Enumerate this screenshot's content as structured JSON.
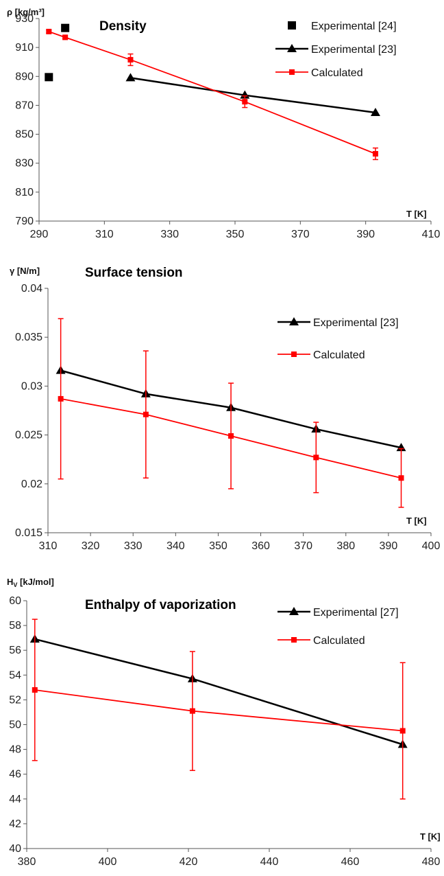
{
  "chart_data": [
    {
      "type": "line",
      "title": "Density",
      "ylabel": "ρ [kg/m³]",
      "xlabel": "T [K]",
      "xlim": [
        290,
        410
      ],
      "ylim": [
        790,
        930
      ],
      "xticks": [
        290,
        310,
        330,
        350,
        370,
        390,
        410
      ],
      "yticks": [
        790,
        810,
        830,
        850,
        870,
        890,
        910,
        930
      ],
      "grid": false,
      "legend_position": "top-right",
      "series": [
        {
          "name": "Experimental [24]",
          "marker": "square",
          "line": false,
          "color": "#000000",
          "points": [
            {
              "x": 293,
              "y": 889.5
            },
            {
              "x": 298,
              "y": 923.5
            }
          ]
        },
        {
          "name": "Experimental [23]",
          "marker": "triangle",
          "line": true,
          "color": "#000000",
          "points": [
            {
              "x": 318,
              "y": 889
            },
            {
              "x": 353,
              "y": 877
            },
            {
              "x": 393,
              "y": 865
            }
          ]
        },
        {
          "name": "Calculated",
          "marker": "small-square",
          "line": true,
          "color": "#ff0000",
          "points": [
            {
              "x": 293,
              "y": 921,
              "err": 1
            },
            {
              "x": 298,
              "y": 917,
              "err": 1
            },
            {
              "x": 318,
              "y": 901.5,
              "err": 4
            },
            {
              "x": 353,
              "y": 872.5,
              "err": 4
            },
            {
              "x": 393,
              "y": 836.5,
              "err": 4
            }
          ]
        }
      ]
    },
    {
      "type": "line",
      "title": "Surface tension",
      "ylabel": "γ [N/m]",
      "xlabel": "T [K]",
      "xlim": [
        310,
        400
      ],
      "ylim": [
        0.015,
        0.04
      ],
      "xticks": [
        310,
        320,
        330,
        340,
        350,
        360,
        370,
        380,
        390,
        400
      ],
      "yticks": [
        "0.015",
        "0.02",
        "0.025",
        "0.03",
        "0.035",
        "0.04"
      ],
      "grid": false,
      "legend_position": "top-right",
      "series": [
        {
          "name": "Experimental [23]",
          "marker": "triangle",
          "line": true,
          "color": "#000000",
          "points": [
            {
              "x": 313,
              "y": 0.0316
            },
            {
              "x": 333,
              "y": 0.0292
            },
            {
              "x": 353,
              "y": 0.0278
            },
            {
              "x": 373,
              "y": 0.0256
            },
            {
              "x": 393,
              "y": 0.0237
            }
          ]
        },
        {
          "name": "Calculated",
          "marker": "small-square",
          "line": true,
          "color": "#ff0000",
          "points": [
            {
              "x": 313,
              "y": 0.0287,
              "lo": 0.0205,
              "hi": 0.0369
            },
            {
              "x": 333,
              "y": 0.0271,
              "lo": 0.0206,
              "hi": 0.0336
            },
            {
              "x": 353,
              "y": 0.0249,
              "lo": 0.0195,
              "hi": 0.0303
            },
            {
              "x": 373,
              "y": 0.0227,
              "lo": 0.0191,
              "hi": 0.0263
            },
            {
              "x": 393,
              "y": 0.0206,
              "lo": 0.0176,
              "hi": 0.0236
            }
          ]
        }
      ]
    },
    {
      "type": "line",
      "title": "Enthalpy of vaporization",
      "ylabel_main": "H",
      "ylabel_sub": "V",
      "ylabel_rest": " [kJ/mol]",
      "xlabel": "T [K]",
      "xlim": [
        380,
        480
      ],
      "ylim": [
        40,
        60
      ],
      "xticks": [
        380,
        400,
        420,
        440,
        460,
        480
      ],
      "yticks": [
        40,
        42,
        44,
        46,
        48,
        50,
        52,
        54,
        56,
        58,
        60
      ],
      "grid": false,
      "legend_position": "top-right",
      "series": [
        {
          "name": "Experimental [27]",
          "marker": "triangle",
          "line": true,
          "color": "#000000",
          "points": [
            {
              "x": 382,
              "y": 56.9
            },
            {
              "x": 421,
              "y": 53.7
            },
            {
              "x": 473,
              "y": 48.4
            }
          ]
        },
        {
          "name": "Calculated",
          "marker": "small-square",
          "line": true,
          "color": "#ff0000",
          "points": [
            {
              "x": 382,
              "y": 52.8,
              "lo": 47.1,
              "hi": 58.5
            },
            {
              "x": 421,
              "y": 51.1,
              "lo": 46.3,
              "hi": 55.9
            },
            {
              "x": 473,
              "y": 49.5,
              "lo": 44.0,
              "hi": 55.0
            }
          ]
        }
      ]
    }
  ]
}
